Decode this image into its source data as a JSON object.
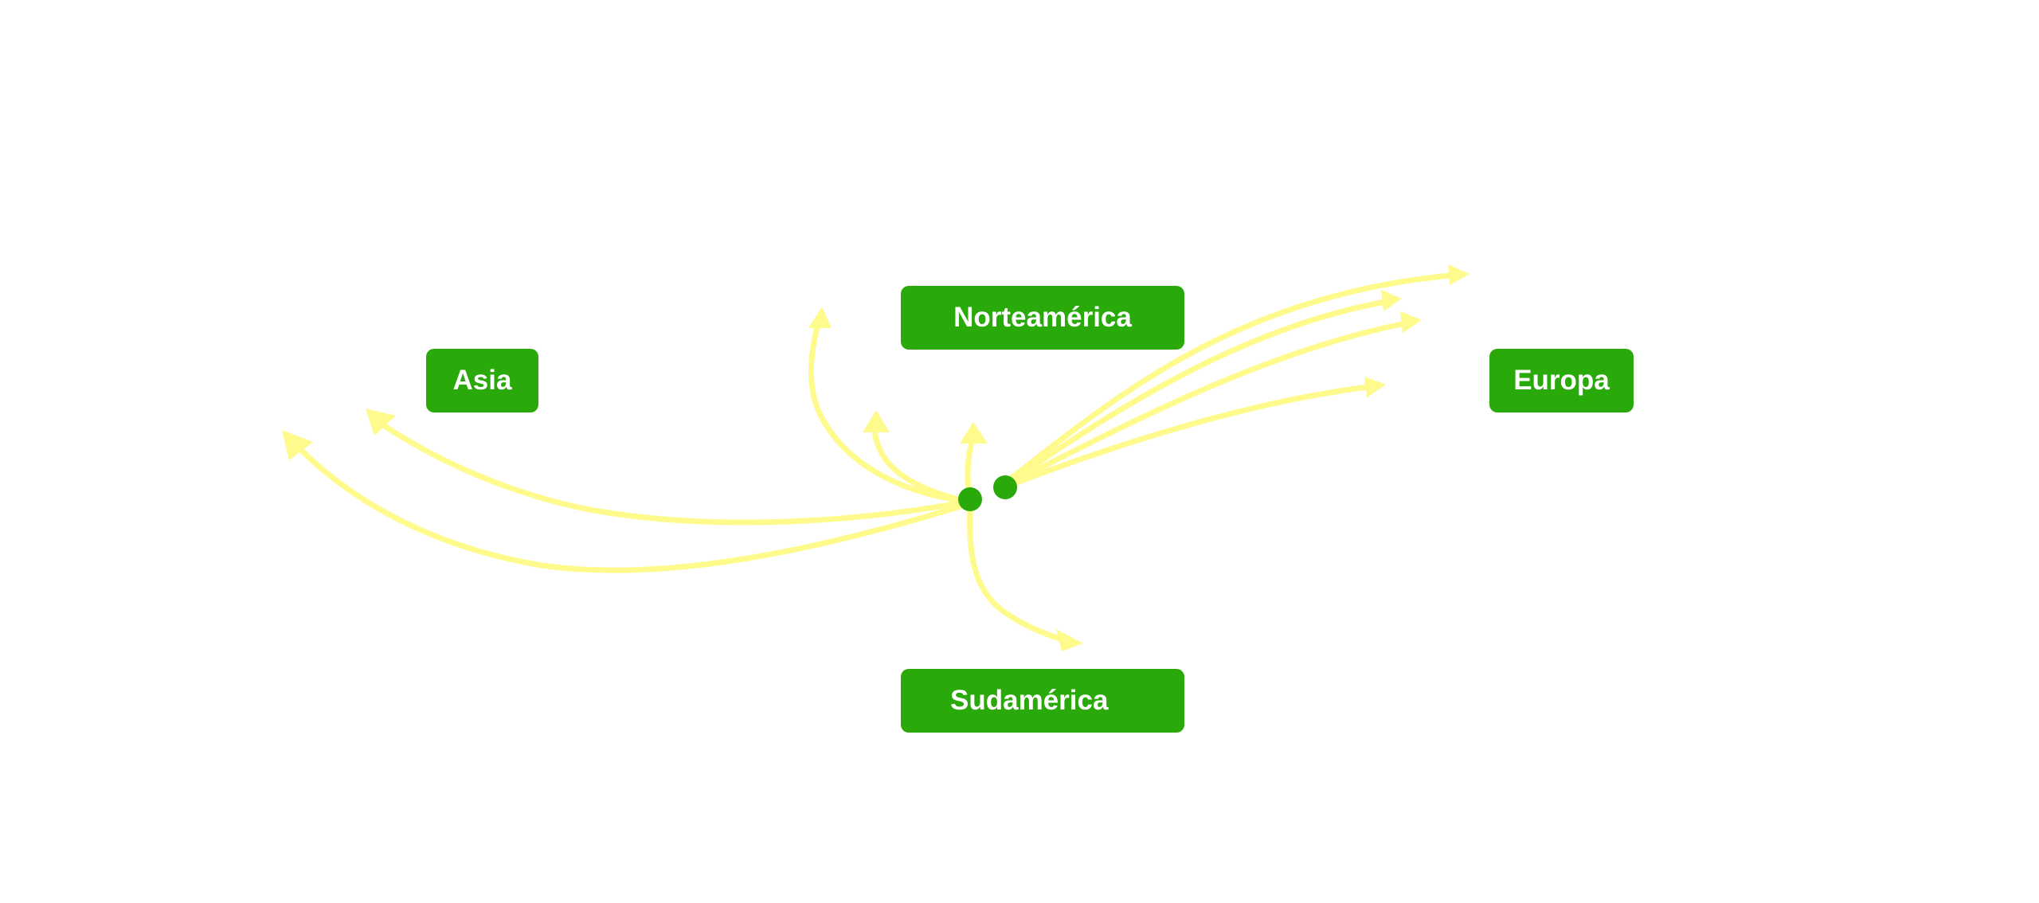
{
  "colors": {
    "label_bg": "#29a90a",
    "label_text": "#ffffff",
    "flow_line": "#fffa8c",
    "node": "#29a90a"
  },
  "regions": {
    "asia": "Asia",
    "norteamerica": "Norteamérica",
    "europa": "Europa",
    "sudamerica": "Sudamérica"
  }
}
